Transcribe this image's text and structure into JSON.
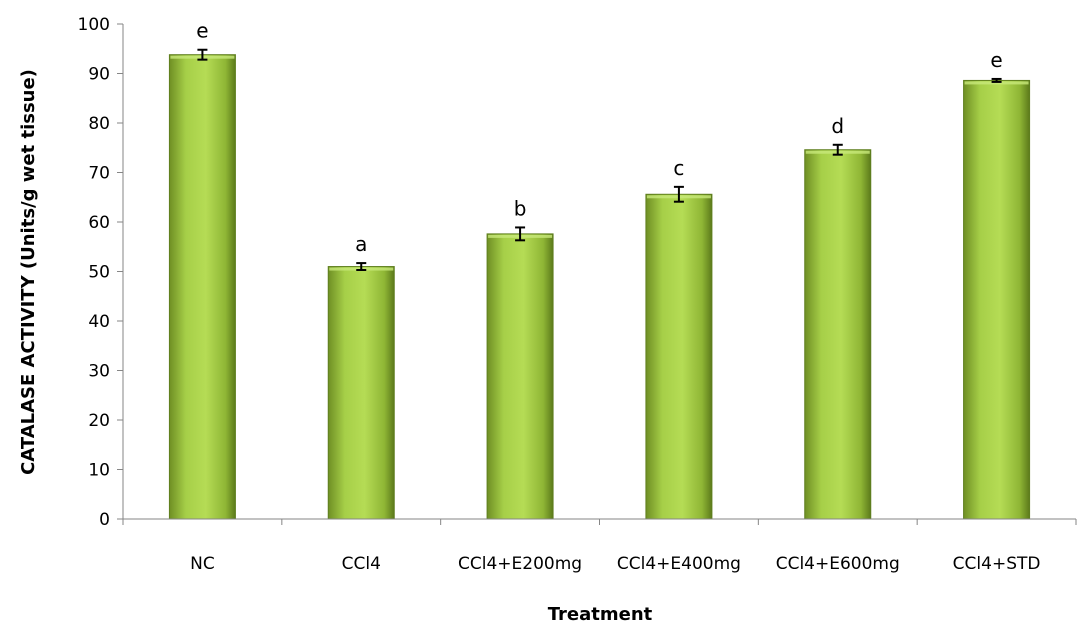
{
  "chart_data": {
    "type": "bar",
    "categories": [
      "NC",
      "CCl4",
      "CCl4+E200mg",
      "CCl4+E400mg",
      "CCl4+E600mg",
      "CCl4+STD"
    ],
    "values": [
      93.8,
      51.0,
      57.6,
      65.6,
      74.6,
      88.6
    ],
    "errors": [
      1.0,
      0.7,
      1.3,
      1.5,
      1.0,
      0.3
    ],
    "significance": [
      "e",
      "a",
      "b",
      "c",
      "d",
      "e"
    ],
    "xlabel": "Treatment",
    "ylabel": "CATALASE ACTIVITY (Units/g wet tissue)",
    "ylim": [
      0,
      100
    ],
    "yticks": [
      0,
      10,
      20,
      30,
      40,
      50,
      60,
      70,
      80,
      90,
      100
    ],
    "grid": false,
    "legend": "none",
    "bar_color": "#9bc43f",
    "bar_edge_color": "#5f7f1e"
  }
}
